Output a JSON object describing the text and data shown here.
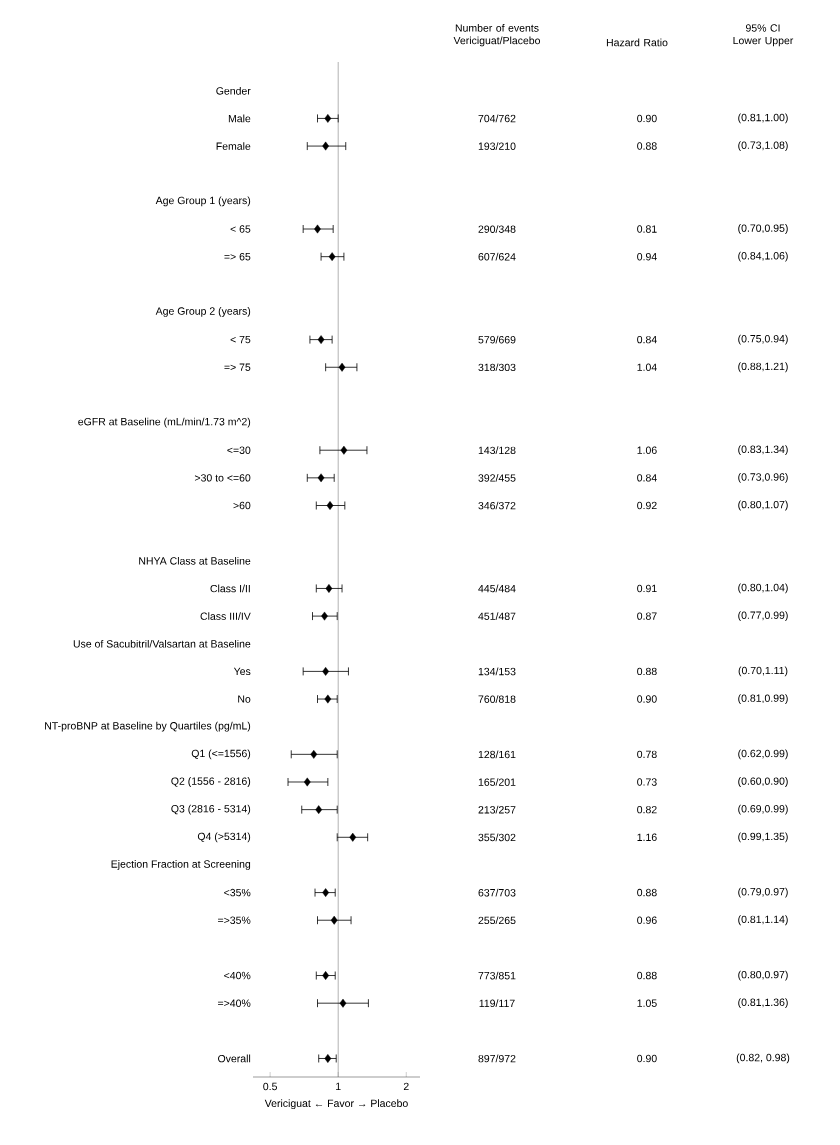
{
  "chart_data": {
    "type": "scatter",
    "orientation": "horizontal",
    "log": "x",
    "marker": "diamond",
    "color": "#000000",
    "categories": [
      "Gender",
      "Male",
      "Female",
      null,
      "Age Group 1 (years)",
      "< 65",
      "=> 65",
      null,
      "Age Group 2 (years)",
      "< 75",
      "=> 75",
      null,
      "eGFR at Baseline (mL/min/1.73 m^2)",
      "<=30",
      ">30 to <=60",
      ">60",
      null,
      "NHYA Class at Baseline",
      "Class I/II",
      "Class III/IV",
      "Use of Sacubitril/Valsartan at Baseline",
      "Yes",
      "No",
      "NT-proBNP at Baseline by Quartiles (pg/mL)",
      "Q1 (<=1556)",
      "Q2 (1556 - 2816)",
      "Q3 (2816 - 5314)",
      "Q4 (>5314)",
      "Ejection Fraction at Screening",
      "<35%",
      "=>35%",
      null,
      "<40%",
      "=>40%",
      null,
      "Overall"
    ],
    "values": [
      null,
      0.9,
      0.88,
      null,
      null,
      0.81,
      0.94,
      null,
      null,
      0.84,
      1.04,
      null,
      null,
      1.06,
      0.84,
      0.92,
      null,
      null,
      0.91,
      0.87,
      null,
      0.88,
      0.9,
      null,
      0.78,
      0.73,
      0.82,
      1.16,
      null,
      0.88,
      0.96,
      null,
      0.88,
      1.05,
      null,
      0.9
    ],
    "errors": [
      null,
      [
        0.81,
        1.0
      ],
      [
        0.73,
        1.08
      ],
      null,
      null,
      [
        0.7,
        0.95
      ],
      [
        0.84,
        1.06
      ],
      null,
      null,
      [
        0.75,
        0.94
      ],
      [
        0.88,
        1.21
      ],
      null,
      null,
      [
        0.83,
        1.34
      ],
      [
        0.73,
        0.96
      ],
      [
        0.8,
        1.07
      ],
      null,
      null,
      [
        0.8,
        1.04
      ],
      [
        0.77,
        0.99
      ],
      null,
      [
        0.7,
        1.11
      ],
      [
        0.81,
        0.99
      ],
      null,
      [
        0.62,
        0.99
      ],
      [
        0.6,
        0.9
      ],
      [
        0.69,
        0.99
      ],
      [
        0.99,
        1.35
      ],
      null,
      [
        0.79,
        0.97
      ],
      [
        0.81,
        1.14
      ],
      null,
      [
        0.8,
        0.97
      ],
      [
        0.81,
        1.36
      ],
      null,
      [
        0.82,
        0.98
      ]
    ],
    "xlim": [
      0.42,
      2.3
    ],
    "xticks": [
      0.5,
      1,
      2
    ],
    "xlabel": "Vericiguat ← Favor → Placebo",
    "ref_lines": [
      {
        "axis": "x",
        "value": 1,
        "color": "#808080"
      }
    ],
    "annotations": [
      "Number of events Vericiguat/Placebo",
      "Hazard Ratio",
      "95% CI Lower Upper",
      "704/762",
      "0.90",
      "(0.81,1.00)",
      "193/210",
      "0.88",
      "(0.73,1.08)",
      "290/348",
      "0.81",
      "(0.70,0.95)",
      "607/624",
      "0.94",
      "(0.84,1.06)",
      "579/669",
      "0.84",
      "(0.75,0.94)",
      "318/303",
      "1.04",
      "(0.88,1.21)",
      "143/128",
      "1.06",
      "(0.83,1.34)",
      "392/455",
      "0.84",
      "(0.73,0.96)",
      "346/372",
      "0.92",
      "(0.80,1.07)",
      "445/484",
      "0.91",
      "(0.80,1.04)",
      "451/487",
      "0.87",
      "(0.77,0.99)",
      "134/153",
      "0.88",
      "(0.70,1.11)",
      "760/818",
      "0.90",
      "(0.81,0.99)",
      "128/161",
      "0.78",
      "(0.62,0.99)",
      "165/201",
      "0.73",
      "(0.60,0.90)",
      "213/257",
      "0.82",
      "(0.69,0.99)",
      "355/302",
      "1.16",
      "(0.99,1.35)",
      "637/703",
      "0.88",
      "(0.79,0.97)",
      "255/265",
      "0.96",
      "(0.81,1.14)",
      "773/851",
      "0.88",
      "(0.80,0.97)",
      "119/117",
      "1.05",
      "(0.81,1.36)",
      "897/972",
      "0.90",
      "(0.82, 0.98)"
    ]
  }
}
